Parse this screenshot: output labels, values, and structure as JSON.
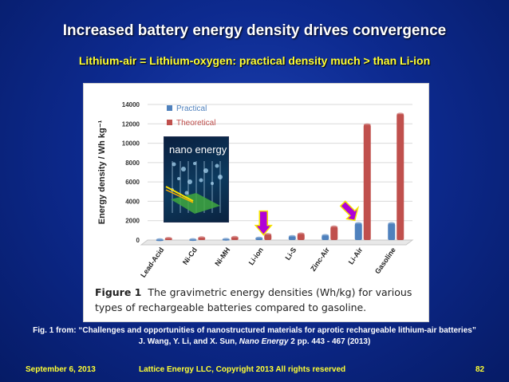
{
  "slide": {
    "title": "Increased battery energy density drives convergence",
    "subtitle": "Lithium-air = Lithium-oxygen: practical density much > than Li-ion",
    "source_line1": "Fig. 1 from: “Challenges and opportunities of nanostructured materials for aprotic rechargeable lithium-air batteries”",
    "source_line2_authors": "J. Wang, Y. Li, and X. Sun, ",
    "source_line2_journal": "Nano Energy",
    "source_line2_rest": " 2 pp.  443 - 467 (2013)",
    "footer_date": "September 6, 2013",
    "footer_copyright": "Lattice Energy LLC, Copyright 2013   All rights reserved",
    "footer_page": "82"
  },
  "figure": {
    "caption_label": "Figure 1",
    "caption_text": "The gravimetric energy densities (Wh/kg) for various types of rechargeable batteries compared to gasoline.",
    "cover_title": "nano energy"
  },
  "colors": {
    "practical": "#4f81bd",
    "theoretical": "#c0504d",
    "arrow": "#b000d8",
    "arrow_edge": "#f5e400"
  },
  "chart_data": {
    "type": "bar",
    "ylabel": "Energy density / Wh kg⁻¹",
    "ylim": [
      0,
      14000
    ],
    "yticks": [
      0,
      2000,
      4000,
      6000,
      8000,
      10000,
      12000,
      14000
    ],
    "categories": [
      "Lead-Acid",
      "Ni-Cd",
      "Ni-MH",
      "Li-ion",
      "Li-S",
      "Zinc-Air",
      "Li-Air",
      "Gasoline"
    ],
    "series": [
      {
        "name": "Practical",
        "values": [
          35,
          50,
          80,
          200,
          370,
          470,
          1700,
          1700
        ]
      },
      {
        "name": "Theoretical",
        "values": [
          170,
          240,
          280,
          570,
          630,
          1350,
          11900,
          13000
        ]
      }
    ],
    "legend": "top-left",
    "arrows_on": [
      "Li-ion",
      "Li-Air"
    ]
  }
}
